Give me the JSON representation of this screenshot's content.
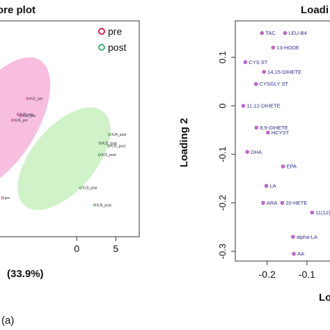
{
  "figure": {
    "caption": "(a)"
  },
  "chart_data": [
    {
      "type": "scatter",
      "title": "ore plot",
      "xlabel": "(33.9%)",
      "ylabel": "",
      "x_ticks": [
        "0",
        "5"
      ],
      "xlim": [
        -10,
        8
      ],
      "ylim": [
        -8,
        7
      ],
      "legend": {
        "position": "top-right",
        "entries": [
          {
            "label": "pre",
            "color": "#e6194b"
          },
          {
            "label": "post",
            "color": "#3cb371"
          }
        ]
      },
      "series": [
        {
          "name": "pre",
          "color": "#c0306f",
          "ellipse_fill": "#f7b3d9",
          "points": [
            {
              "label": "KJ2_pre",
              "x": -6.3,
              "y": 1.6
            },
            {
              "label": "KJ3_pre",
              "x": -7.5,
              "y": 0.5
            },
            {
              "label": "KJ1_pre",
              "x": -7.2,
              "y": 0.4
            },
            {
              "label": "KJ5_pre",
              "x": -8.2,
              "y": 0.1
            },
            {
              "label": "pre",
              "x": -9.5,
              "y": -5.3
            }
          ]
        },
        {
          "name": "post",
          "color": "#3a8a3a",
          "ellipse_fill": "#c8f0c0",
          "points": [
            {
              "label": "KJ4_post",
              "x": 4.2,
              "y": -0.9
            },
            {
              "label": "KJ2_post",
              "x": 3.0,
              "y": -1.5
            },
            {
              "label": "KJ5_post",
              "x": 4.1,
              "y": -1.7
            },
            {
              "label": "KJ1_post",
              "x": 2.9,
              "y": -2.3
            },
            {
              "label": "KJ3_post",
              "x": 0.5,
              "y": -4.6
            },
            {
              "label": "KJ6_post",
              "x": 2.3,
              "y": -5.8
            }
          ]
        }
      ]
    },
    {
      "type": "scatter",
      "title": "Loadi",
      "xlabel": "Lo",
      "ylabel": "Loading 2",
      "x_ticks": [
        "-0.2",
        "-0.1"
      ],
      "y_ticks": [
        "0.1",
        "0",
        "-0.1",
        "-0.2",
        "-0.3"
      ],
      "xlim": [
        -0.28,
        -0.035
      ],
      "ylim": [
        -0.32,
        0.175
      ],
      "points": [
        {
          "label": "TAC",
          "x": -0.213,
          "y": 0.15
        },
        {
          "label": "LEU-B4",
          "x": -0.155,
          "y": 0.15
        },
        {
          "label": "13-HODE",
          "x": -0.185,
          "y": 0.12
        },
        {
          "label": "CYS ST",
          "x": -0.255,
          "y": 0.09
        },
        {
          "label": "14,15-DIHETE",
          "x": -0.208,
          "y": 0.07
        },
        {
          "label": "CYSGLY ST",
          "x": -0.228,
          "y": 0.045
        },
        {
          "label": "11,12-DIHETE",
          "x": -0.26,
          "y": 0.0
        },
        {
          "label": "8,9-DIHETE",
          "x": -0.227,
          "y": -0.045
        },
        {
          "label": "HCYST",
          "x": -0.198,
          "y": -0.055
        },
        {
          "label": "DHA",
          "x": -0.25,
          "y": -0.095
        },
        {
          "label": "EPA",
          "x": -0.16,
          "y": -0.125
        },
        {
          "label": "LA",
          "x": -0.202,
          "y": -0.165
        },
        {
          "label": "ARA",
          "x": -0.21,
          "y": -0.2
        },
        {
          "label": "20-HETE",
          "x": -0.162,
          "y": -0.2
        },
        {
          "label": "11(12)",
          "x": -0.087,
          "y": -0.22
        },
        {
          "label": "alpha-LA",
          "x": -0.135,
          "y": -0.27
        },
        {
          "label": "AA",
          "x": -0.133,
          "y": -0.305
        },
        {
          "label": "",
          "x": -0.036,
          "y": -0.065
        }
      ]
    }
  ]
}
